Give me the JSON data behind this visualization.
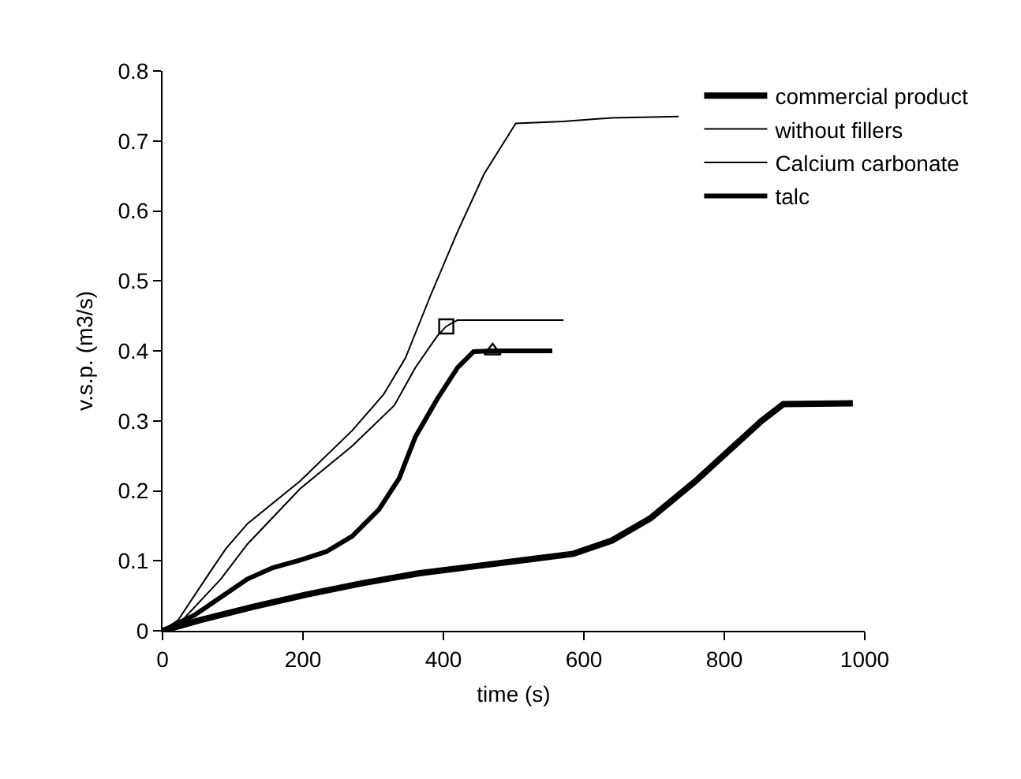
{
  "chart_data": {
    "type": "line",
    "xlabel": "time (s)",
    "ylabel": "v.s.p. (m3/s)",
    "xlim": [
      0,
      1000
    ],
    "xticks": [
      0,
      200,
      400,
      600,
      800,
      1000
    ],
    "ylim": [
      0,
      0.8
    ],
    "yticks": [
      0,
      0.1,
      0.2,
      0.3,
      0.4,
      0.5,
      0.6,
      0.7,
      0.8
    ],
    "grid": false,
    "legend": "top right",
    "marker": "none",
    "line_style": "solid",
    "series": [
      {
        "name": "commercial product",
        "color": "#000000",
        "x": [
          0,
          49,
          128,
          206,
          285,
          364,
          443,
          522,
          585,
          640,
          695,
          758,
          805,
          853,
          884,
          983
        ],
        "values": [
          0,
          0.014,
          0.034,
          0.052,
          0.068,
          0.082,
          0.092,
          0.102,
          0.11,
          0.129,
          0.161,
          0.213,
          0.256,
          0.3,
          0.324,
          0.325
        ]
      },
      {
        "name": "without fillers",
        "color": "#000000",
        "x": [
          0,
          22,
          67,
          90,
          121,
          196,
          270,
          315,
          346,
          382,
          420,
          458,
          503,
          571,
          640,
          735
        ],
        "values": [
          0,
          0.015,
          0.083,
          0.117,
          0.153,
          0.214,
          0.286,
          0.338,
          0.39,
          0.48,
          0.57,
          0.653,
          0.725,
          0.728,
          0.733,
          0.735
        ]
      },
      {
        "name": "Calcium carbonate",
        "color": "#000000",
        "x": [
          0,
          31,
          83,
          121,
          196,
          270,
          330,
          360,
          391,
          404,
          420,
          571
        ],
        "values": [
          0,
          0.018,
          0.074,
          0.124,
          0.203,
          0.264,
          0.322,
          0.376,
          0.421,
          0.435,
          0.444,
          0.444
        ]
      },
      {
        "name": "talc",
        "color": "#000000",
        "x": [
          0,
          45,
          121,
          157,
          196,
          233,
          270,
          308,
          337,
          360,
          391,
          420,
          443,
          470,
          555
        ],
        "values": [
          0,
          0.022,
          0.074,
          0.09,
          0.101,
          0.113,
          0.135,
          0.173,
          0.218,
          0.277,
          0.331,
          0.376,
          0.399,
          0.4,
          0.4
        ]
      },
      {
        "type": "scatter",
        "marker": "square",
        "color": "#000000",
        "x": [
          404
        ],
        "values": [
          0.435
        ]
      },
      {
        "type": "scatter",
        "marker": "triangle",
        "color": "#000000",
        "x": [
          470
        ],
        "values": [
          0.4
        ]
      }
    ]
  }
}
